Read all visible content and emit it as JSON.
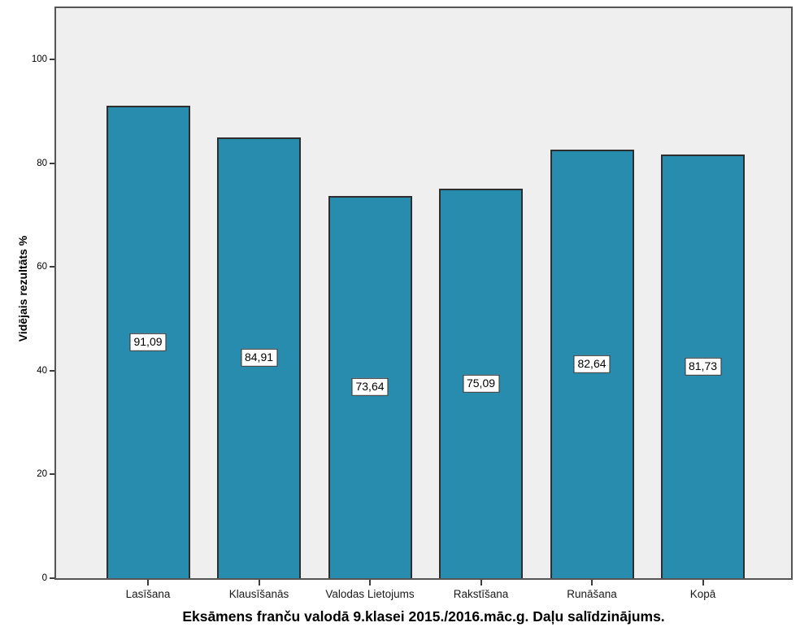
{
  "chart_data": {
    "type": "bar",
    "title": "Eksāmens franču valodā 9.klasei 2015./2016.māc.g. Daļu salīdzinājums.",
    "ylabel": "Vidējais rezultāts %",
    "xlabel": "",
    "categories": [
      "Lasīšana",
      "Klausīšanās",
      "Valodas Lietojums",
      "Rakstīšana",
      "Runāšana",
      "Kopā"
    ],
    "values": [
      91.09,
      84.91,
      73.64,
      75.09,
      82.64,
      81.73
    ],
    "value_labels": [
      "91,09",
      "84,91",
      "73,64",
      "75,09",
      "82,64",
      "81,73"
    ],
    "y_ticks": [
      0,
      20,
      40,
      60,
      80,
      100
    ],
    "ylim": [
      0,
      110
    ],
    "grid": false,
    "legend_position": "none",
    "colors": {
      "bar_fill": "#288CAF",
      "bar_border": "#2E2E2E",
      "plot_background": "#EFEFEF",
      "frame": "#555555",
      "label_box_background": "#FFFFFF",
      "label_box_border": "#2E2E2E",
      "text": "#000000"
    }
  }
}
